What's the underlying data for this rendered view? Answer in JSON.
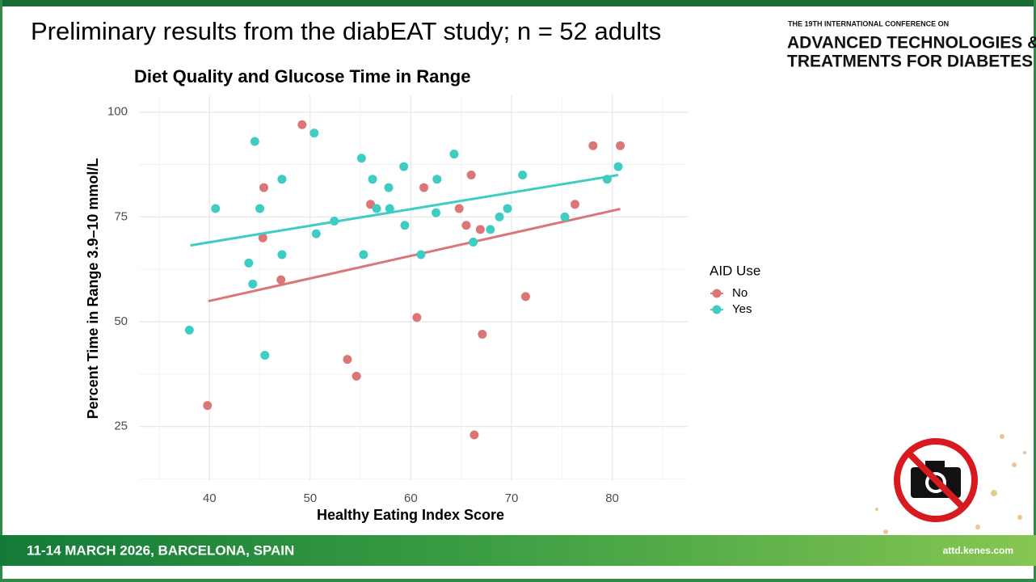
{
  "slide": {
    "title": "Preliminary results from the diabEAT study; n = 52 adults",
    "conference_line": "THE 19TH INTERNATIONAL CONFERENCE ON",
    "conference_name_1": "ADVANCED TECHNOLOGIES &",
    "conference_name_2": "TREATMENTS FOR DIABETES",
    "footer_dates": "11-14 MARCH 2026, BARCELONA, SPAIN",
    "footer_url": "attd.kenes.com"
  },
  "chart_data": {
    "type": "scatter",
    "title": "Diet Quality and Glucose Time in Range",
    "x_label": "Healthy Eating Index Score",
    "y_label": "Percent Time in Range 3.9–10 mmol/L",
    "legend_title": "AID Use",
    "xlim": [
      33,
      87.5
    ],
    "ylim": [
      12,
      104
    ],
    "xticks": [
      40,
      50,
      60,
      70,
      80
    ],
    "yticks": [
      25,
      50,
      75,
      100
    ],
    "minor_xticks": [
      35,
      45,
      55,
      65,
      75,
      85
    ],
    "minor_yticks": [
      12.5,
      37.5,
      62.5,
      87.5
    ],
    "grid": true,
    "series": [
      {
        "name": "No",
        "color": "#dc7676",
        "x": [
          39.8,
          45.4,
          45.3,
          47.1,
          49.2,
          53.7,
          54.6,
          56.0,
          60.6,
          61.3,
          66.0,
          64.8,
          65.5,
          66.9,
          67.1,
          66.3,
          71.4,
          76.3,
          78.1,
          80.8
        ],
        "values": [
          30,
          82,
          70,
          60,
          97,
          41,
          37,
          78,
          51,
          82,
          85,
          77,
          73,
          72,
          47,
          23,
          56,
          78,
          92,
          92
        ],
        "trend": {
          "x": [
            39.9,
            80.8
          ],
          "y": [
            54.9,
            76.9
          ]
        }
      },
      {
        "name": "Yes",
        "color": "#3ecdc2",
        "x": [
          38.0,
          40.6,
          43.9,
          44.3,
          44.5,
          45.0,
          45.5,
          47.2,
          47.2,
          50.4,
          50.6,
          52.4,
          55.1,
          55.3,
          56.2,
          56.6,
          57.8,
          57.9,
          59.3,
          59.4,
          61.0,
          62.5,
          62.6,
          64.3,
          66.2,
          67.9,
          68.8,
          69.6,
          71.1,
          75.3,
          79.5,
          80.6
        ],
        "values": [
          48,
          77,
          64,
          59,
          93,
          77,
          42,
          84,
          66,
          95,
          71,
          74,
          89,
          66,
          84,
          77,
          82,
          77,
          87,
          73,
          66,
          76,
          84,
          90,
          69,
          72,
          75,
          77,
          85,
          75,
          84,
          87
        ],
        "trend": {
          "x": [
            38.1,
            80.6
          ],
          "y": [
            68.2,
            85.0
          ]
        }
      }
    ]
  }
}
